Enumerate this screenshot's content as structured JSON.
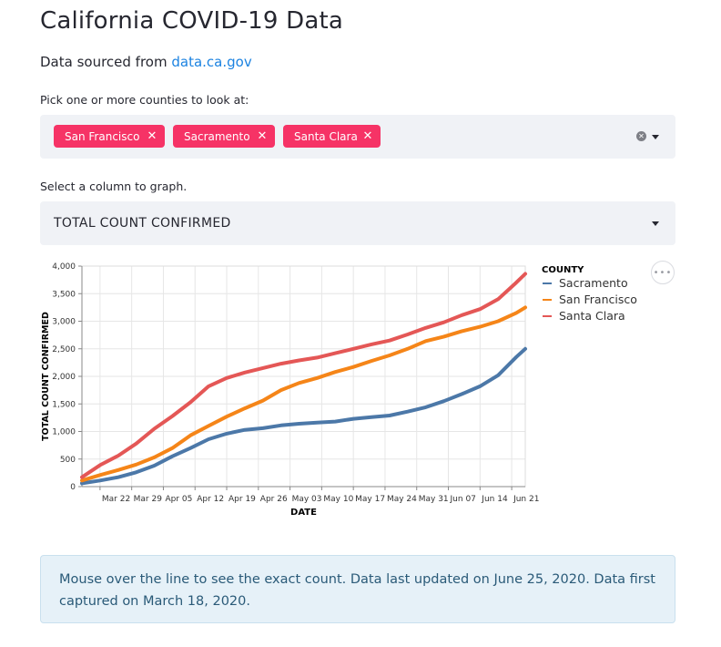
{
  "page": {
    "title": "California COVID-19 Data",
    "source_prefix": "Data sourced from",
    "source_link": "data.ca.gov"
  },
  "county_picker": {
    "label": "Pick one or more counties to look at:",
    "selected": [
      "San Francisco",
      "Sacramento",
      "Santa Clara"
    ]
  },
  "column_picker": {
    "label": "Select a column to graph.",
    "value": "TOTAL COUNT CONFIRMED"
  },
  "info_box": {
    "text": "Mouse over the line to see the exact count. Data last updated on June 25, 2020. Data first captured on March 18, 2020."
  },
  "colors": {
    "chip": "#f63366",
    "Sacramento": "#4c78a8",
    "San Francisco": "#f58518",
    "Santa Clara": "#e45756",
    "link": "#1c83e1"
  },
  "chart_data": {
    "type": "line",
    "xlabel": "DATE",
    "ylabel": "TOTAL COUNT CONFIRMED",
    "ylim": [
      0,
      4000
    ],
    "yticks": [
      "0",
      "500",
      "1,000",
      "1,500",
      "2,000",
      "2,500",
      "3,000",
      "3,500",
      "4,000"
    ],
    "xticks": [
      "Mar 22",
      "Mar 29",
      "Apr 05",
      "Apr 12",
      "Apr 19",
      "Apr 26",
      "May 03",
      "May 10",
      "May 17",
      "May 24",
      "May 31",
      "Jun 07",
      "Jun 14",
      "Jun 21"
    ],
    "xtick_dates": [
      "2020-03-22",
      "2020-03-29",
      "2020-04-05",
      "2020-04-12",
      "2020-04-19",
      "2020-04-26",
      "2020-05-03",
      "2020-05-10",
      "2020-05-17",
      "2020-05-24",
      "2020-05-31",
      "2020-06-07",
      "2020-06-14",
      "2020-06-21"
    ],
    "x_range": [
      "2020-03-18",
      "2020-06-24"
    ],
    "legend_title": "COUNTY",
    "legend_placement": "right",
    "x": [
      "2020-03-18",
      "2020-03-22",
      "2020-03-26",
      "2020-03-30",
      "2020-04-03",
      "2020-04-07",
      "2020-04-11",
      "2020-04-15",
      "2020-04-19",
      "2020-04-23",
      "2020-04-27",
      "2020-05-01",
      "2020-05-05",
      "2020-05-09",
      "2020-05-13",
      "2020-05-17",
      "2020-05-21",
      "2020-05-25",
      "2020-05-29",
      "2020-06-02",
      "2020-06-06",
      "2020-06-10",
      "2020-06-14",
      "2020-06-18",
      "2020-06-22",
      "2020-06-24"
    ],
    "series": [
      {
        "name": "Sacramento",
        "values": [
          60,
          110,
          170,
          260,
          380,
          550,
          700,
          860,
          960,
          1030,
          1060,
          1110,
          1140,
          1160,
          1180,
          1230,
          1260,
          1290,
          1360,
          1440,
          1550,
          1680,
          1820,
          2020,
          2350,
          2500
        ]
      },
      {
        "name": "San Francisco",
        "values": [
          110,
          210,
          300,
          400,
          530,
          700,
          930,
          1100,
          1270,
          1420,
          1560,
          1750,
          1880,
          1970,
          2080,
          2170,
          2280,
          2380,
          2500,
          2640,
          2720,
          2820,
          2900,
          3000,
          3150,
          3250
        ]
      },
      {
        "name": "Santa Clara",
        "values": [
          170,
          390,
          560,
          780,
          1050,
          1280,
          1530,
          1820,
          1970,
          2070,
          2150,
          2230,
          2290,
          2340,
          2420,
          2500,
          2580,
          2650,
          2760,
          2880,
          2980,
          3110,
          3220,
          3400,
          3700,
          3860
        ]
      }
    ]
  }
}
